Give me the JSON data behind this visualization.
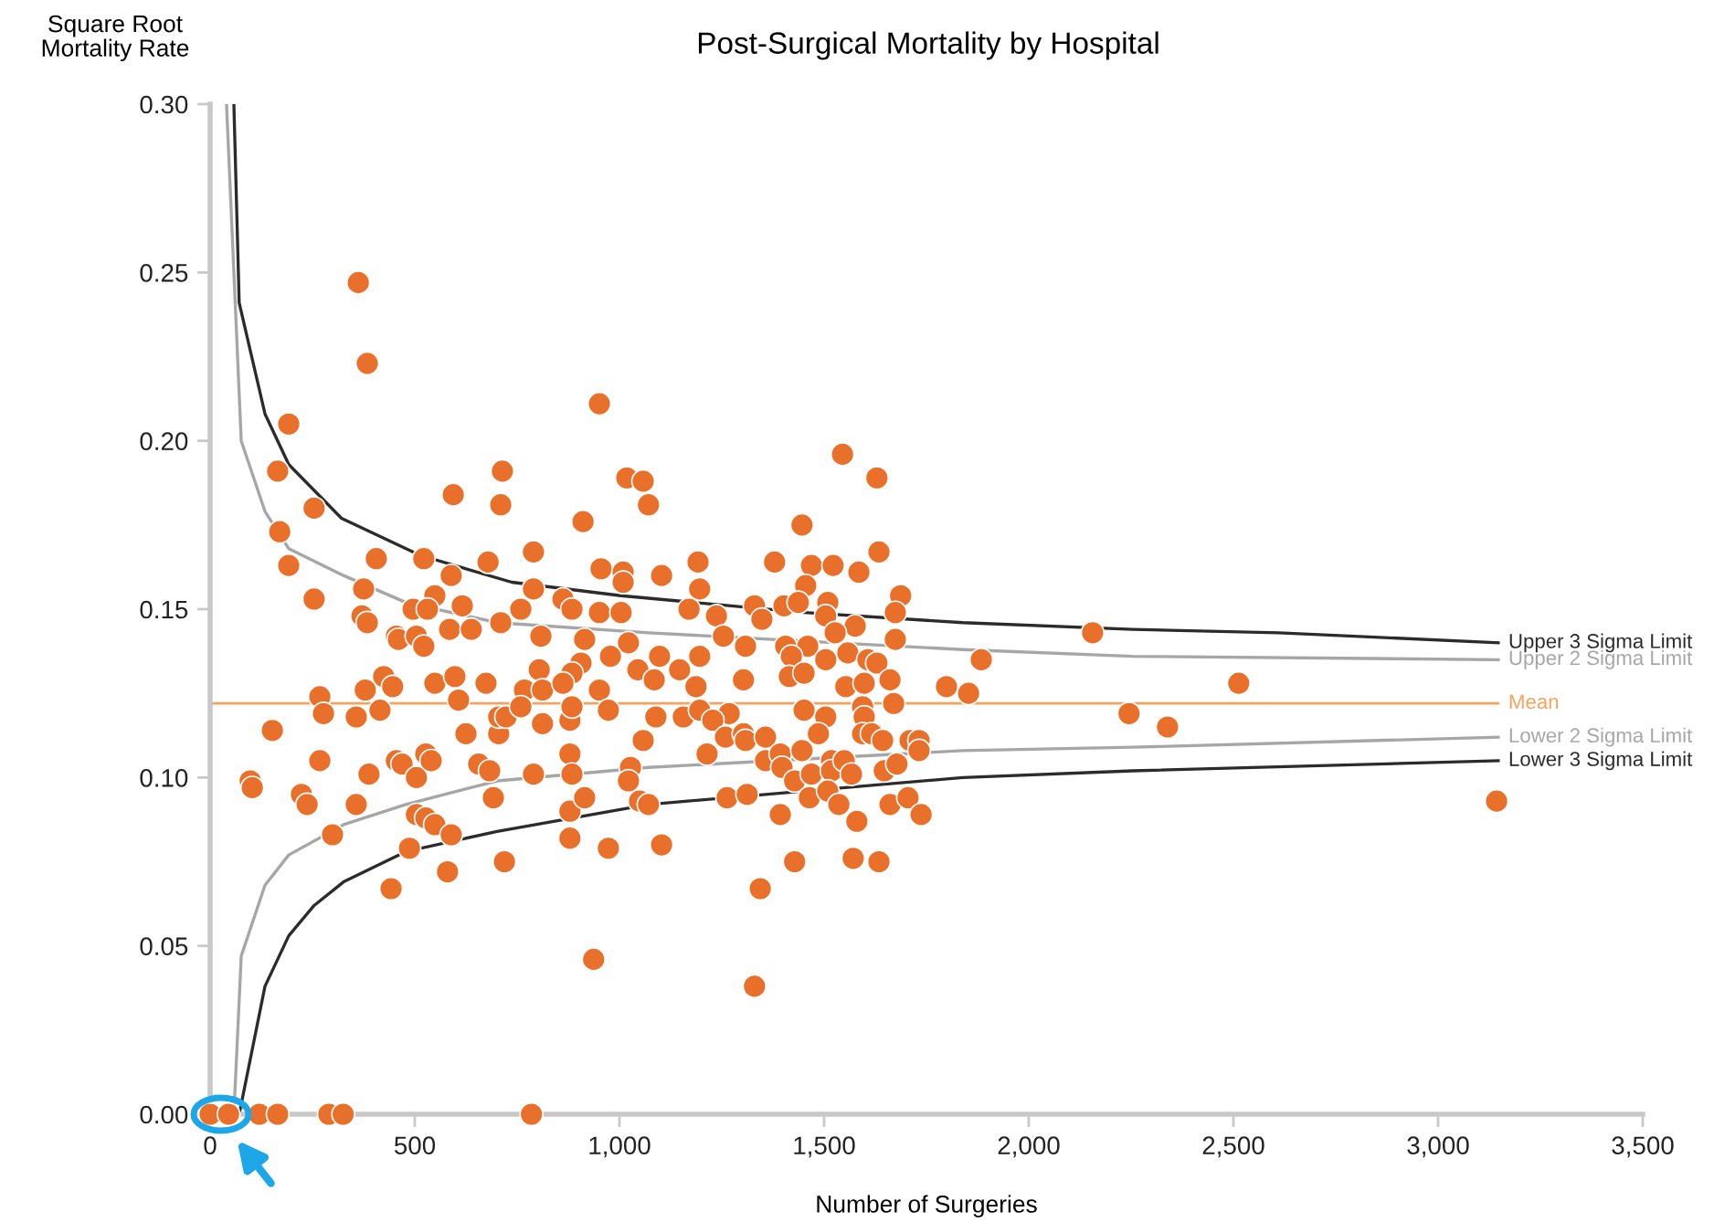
{
  "chart_data": {
    "type": "scatter",
    "title": "Post-Surgical Mortality by Hospital",
    "xlabel": "Number of Surgeries",
    "ylabel": "Square Root\nMortality Rate",
    "xlim": [
      0,
      3500
    ],
    "ylim": [
      0,
      0.3
    ],
    "xticks": [
      0,
      500,
      {
        "value": 1000,
        "label": "1,000"
      },
      {
        "value": 1500,
        "label": "1,500"
      },
      {
        "value": 2000,
        "label": "2,000"
      },
      {
        "value": 2500,
        "label": "2,500"
      },
      {
        "value": 3000,
        "label": "3,000"
      },
      {
        "value": 3500,
        "label": "3,500"
      }
    ],
    "yticks": [
      {
        "value": 0,
        "label": "0.00"
      },
      {
        "value": 0.05,
        "label": "0.05"
      },
      {
        "value": 0.1,
        "label": "0.10"
      },
      {
        "value": 0.15,
        "label": "0.15"
      },
      {
        "value": 0.2,
        "label": "0.20"
      },
      {
        "value": 0.25,
        "label": "0.25"
      },
      {
        "value": 0.3,
        "label": "0.30"
      }
    ],
    "grid": false,
    "legend": false,
    "ref_lines": [
      {
        "axis": "y",
        "value": 0.122,
        "label": "Mean",
        "color": "#f5a35f"
      }
    ],
    "series": [
      {
        "marker": "circle",
        "color": "#e8702a",
        "x": [
          0,
          45,
          120,
          165,
          290,
          325,
          785,
          362,
          384,
          951,
          192,
          165,
          714,
          594,
          710,
          254,
          1018,
          1058,
          1071,
          911,
          170,
          192,
          406,
          522,
          679,
          790,
          955,
          1009,
          1009,
          589,
          790,
          375,
          254,
          549,
          616,
          496,
          531,
          759,
          862,
          884,
          951,
          1004,
          371,
          384,
          455,
          460,
          504,
          522,
          585,
          638,
          710,
          808,
          915,
          1022,
          978,
          804,
          906,
          884,
          1045,
          424,
          446,
          379,
          549,
          598,
          674,
          768,
          812,
          862,
          951,
          268,
          277,
          357,
          415,
          152,
          607,
          625,
          705,
          705,
          723,
          759,
          812,
          879,
          884,
          973,
          879,
          884,
          1027,
          1022,
          1049,
          268,
          98,
          103,
          223,
          237,
          357,
          388,
          455,
          469,
          504,
          527,
          540,
          656,
          683,
          790,
          692,
          299,
          504,
          527,
          549,
          589,
          487,
          442,
          580,
          719,
          879,
          915,
          879,
          973,
          937,
          1545,
          1629,
          1446,
          1192,
          1379,
          1469,
          1522,
          1585,
          1634,
          1103,
          1196,
          1455,
          1687,
          1674,
          1170,
          1237,
          1330,
          1348,
          1402,
          1437,
          1509,
          1504,
          1576,
          1254,
          1308,
          1406,
          1460,
          1527,
          1674,
          1098,
          1196,
          1420,
          1504,
          1558,
          1607,
          1629,
          1884,
          2156,
          1085,
          1147,
          1187,
          1303,
          1415,
          1451,
          1553,
          1598,
          1661,
          1670,
          1799,
          1853,
          1089,
          1156,
          1196,
          1268,
          1228,
          1451,
          1504,
          1594,
          1598,
          2245,
          2339,
          2513,
          3143,
          1058,
          1071,
          1214,
          1259,
          1303,
          1308,
          1357,
          1357,
          1393,
          1397,
          1446,
          1486,
          1428,
          1469,
          1518,
          1518,
          1549,
          1567,
          1594,
          1616,
          1643,
          1647,
          1678,
          1710,
          1732,
          1732,
          1263,
          1312,
          1393,
          1464,
          1509,
          1536,
          1580,
          1661,
          1705,
          1737,
          1103,
          1428,
          1571,
          1634,
          1344,
          1330
        ],
        "values": [
          0,
          0,
          0,
          0,
          0,
          0,
          0,
          0.247,
          0.223,
          0.211,
          0.205,
          0.191,
          0.191,
          0.184,
          0.181,
          0.18,
          0.189,
          0.188,
          0.181,
          0.176,
          0.173,
          0.163,
          0.165,
          0.165,
          0.164,
          0.167,
          0.162,
          0.161,
          0.158,
          0.16,
          0.156,
          0.156,
          0.153,
          0.154,
          0.151,
          0.15,
          0.15,
          0.15,
          0.153,
          0.15,
          0.149,
          0.149,
          0.148,
          0.146,
          0.142,
          0.141,
          0.142,
          0.139,
          0.144,
          0.144,
          0.146,
          0.142,
          0.141,
          0.14,
          0.136,
          0.132,
          0.134,
          0.131,
          0.132,
          0.13,
          0.127,
          0.126,
          0.128,
          0.13,
          0.128,
          0.126,
          0.126,
          0.128,
          0.126,
          0.124,
          0.119,
          0.118,
          0.12,
          0.114,
          0.123,
          0.113,
          0.113,
          0.118,
          0.118,
          0.121,
          0.116,
          0.117,
          0.121,
          0.12,
          0.107,
          0.101,
          0.103,
          0.099,
          0.093,
          0.105,
          0.099,
          0.097,
          0.095,
          0.092,
          0.092,
          0.101,
          0.105,
          0.104,
          0.1,
          0.107,
          0.105,
          0.104,
          0.102,
          0.101,
          0.094,
          0.083,
          0.089,
          0.088,
          0.086,
          0.083,
          0.079,
          0.067,
          0.072,
          0.075,
          0.09,
          0.094,
          0.082,
          0.079,
          0.046,
          0.196,
          0.189,
          0.175,
          0.164,
          0.164,
          0.163,
          0.163,
          0.161,
          0.167,
          0.16,
          0.156,
          0.157,
          0.154,
          0.149,
          0.15,
          0.148,
          0.151,
          0.147,
          0.151,
          0.152,
          0.152,
          0.148,
          0.145,
          0.142,
          0.139,
          0.139,
          0.139,
          0.143,
          0.141,
          0.136,
          0.136,
          0.136,
          0.135,
          0.137,
          0.135,
          0.134,
          0.135,
          0.143,
          0.129,
          0.132,
          0.127,
          0.129,
          0.13,
          0.131,
          0.127,
          0.128,
          0.129,
          0.122,
          0.127,
          0.125,
          0.118,
          0.118,
          0.12,
          0.119,
          0.117,
          0.12,
          0.118,
          0.121,
          0.118,
          0.119,
          0.115,
          0.128,
          0.093,
          0.111,
          0.092,
          0.107,
          0.112,
          0.113,
          0.111,
          0.112,
          0.105,
          0.107,
          0.103,
          0.108,
          0.113,
          0.099,
          0.101,
          0.105,
          0.102,
          0.105,
          0.101,
          0.113,
          0.113,
          0.111,
          0.102,
          0.104,
          0.111,
          0.111,
          0.108,
          0.094,
          0.095,
          0.089,
          0.094,
          0.096,
          0.092,
          0.087,
          0.092,
          0.094,
          0.089,
          0.08,
          0.075,
          0.076,
          0.075,
          0.067,
          0.038
        ]
      },
      {
        "type": "line",
        "name": "Upper 3 Sigma Limit",
        "color": "#2b2b2b",
        "x": [
          58,
          71,
          134,
          192,
          321,
          513,
          737,
          1004,
          1451,
          1839,
          2254,
          2611,
          3147
        ],
        "values": [
          0.3,
          0.241,
          0.208,
          0.193,
          0.177,
          0.166,
          0.158,
          0.154,
          0.149,
          0.146,
          0.144,
          0.143,
          0.14
        ]
      },
      {
        "type": "line",
        "name": "Upper 2 Sigma Limit",
        "color": "#a6a6a6",
        "x": [
          40,
          76,
          134,
          192,
          326,
          478,
          701,
          1071,
          1839,
          2254,
          3147
        ],
        "values": [
          0.3,
          0.2,
          0.179,
          0.168,
          0.16,
          0.152,
          0.146,
          0.143,
          0.138,
          0.136,
          0.135
        ]
      },
      {
        "type": "line",
        "name": "Lower 2 Sigma Limit",
        "color": "#a6a6a6",
        "x": [
          58,
          76,
          134,
          192,
          326,
          478,
          701,
          1071,
          1839,
          2254,
          3147
        ],
        "values": [
          0,
          0.047,
          0.068,
          0.077,
          0.086,
          0.092,
          0.099,
          0.103,
          0.108,
          0.109,
          0.112
        ]
      },
      {
        "type": "line",
        "name": "Lower 3 Sigma Limit",
        "color": "#2b2b2b",
        "x": [
          71,
          134,
          192,
          254,
          326,
          478,
          701,
          1071,
          1839,
          2254,
          3147
        ],
        "values": [
          0,
          0.038,
          0.053,
          0.062,
          0.069,
          0.078,
          0.084,
          0.092,
          0.1,
          0.102,
          0.105
        ]
      }
    ]
  }
}
